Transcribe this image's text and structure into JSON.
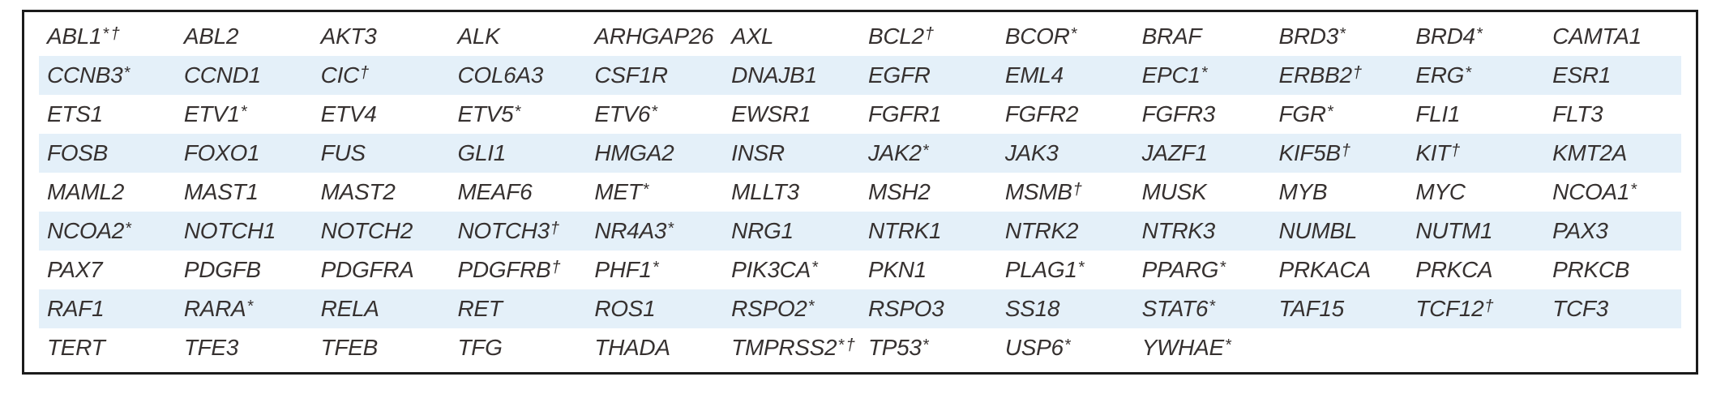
{
  "colors": {
    "row_alt_bg": "#e4f0f9",
    "border": "#1b1b1b",
    "text": "#363130"
  },
  "table": {
    "description_name": "gene-panel-table",
    "columns": 12,
    "rows": [
      [
        "ABL1*†",
        "ABL2",
        "AKT3",
        "ALK",
        "ARHGAP26",
        "AXL",
        "BCL2†",
        "BCOR*",
        "BRAF",
        "BRD3*",
        "BRD4*",
        "CAMTA1"
      ],
      [
        "CCNB3*",
        "CCND1",
        "CIC†",
        "COL6A3",
        "CSF1R",
        "DNAJB1",
        "EGFR",
        "EML4",
        "EPC1*",
        "ERBB2†",
        "ERG*",
        "ESR1"
      ],
      [
        "ETS1",
        "ETV1*",
        "ETV4",
        "ETV5*",
        "ETV6*",
        "EWSR1",
        "FGFR1",
        "FGFR2",
        "FGFR3",
        "FGR*",
        "FLI1",
        "FLT3"
      ],
      [
        "FOSB",
        "FOXO1",
        "FUS",
        "GLI1",
        "HMGA2",
        "INSR",
        "JAK2*",
        "JAK3",
        "JAZF1",
        "KIF5B†",
        "KIT†",
        "KMT2A"
      ],
      [
        "MAML2",
        "MAST1",
        "MAST2",
        "MEAF6",
        "MET*",
        "MLLT3",
        "MSH2",
        "MSMB†",
        "MUSK",
        "MYB",
        "MYC",
        "NCOA1*"
      ],
      [
        "NCOA2*",
        "NOTCH1",
        "NOTCH2",
        "NOTCH3†",
        "NR4A3*",
        "NRG1",
        "NTRK1",
        "NTRK2",
        "NTRK3",
        "NUMBL",
        "NUTM1",
        "PAX3"
      ],
      [
        "PAX7",
        "PDGFB",
        "PDGFRA",
        "PDGFRB†",
        "PHF1*",
        "PIK3CA*",
        "PKN1",
        "PLAG1*",
        "PPARG*",
        "PRKACA",
        "PRKCA",
        "PRKCB"
      ],
      [
        "RAF1",
        "RARA*",
        "RELA",
        "RET",
        "ROS1",
        "RSPO2*",
        "RSPO3",
        "SS18",
        "STAT6*",
        "TAF15",
        "TCF12†",
        "TCF3"
      ],
      [
        "TERT",
        "TFE3",
        "TFEB",
        "TFG",
        "THADA",
        "TMPRSS2*†",
        "TP53*",
        "USP6*",
        "YWHAE*"
      ]
    ]
  }
}
